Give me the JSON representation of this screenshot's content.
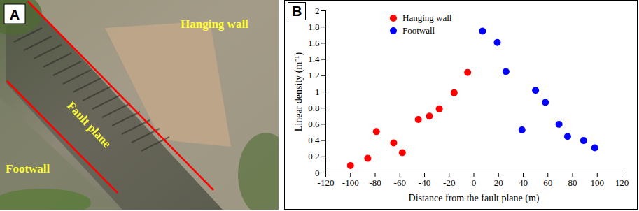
{
  "photo": {
    "panel_label": "A",
    "labels": {
      "hanging_wall": "Hanging wall",
      "fault_plane": "Fault plane",
      "footwall": "Footwall"
    }
  },
  "chart_data": {
    "type": "scatter",
    "panel_label": "B",
    "x_label": "Distance from the fault plane (m)",
    "y_label": "Linear density (m⁻¹)",
    "xlim": [
      -120,
      120
    ],
    "xticks": [
      -120,
      -100,
      -80,
      -60,
      -40,
      -20,
      0,
      20,
      40,
      60,
      80,
      100,
      120
    ],
    "ylim": [
      0,
      2
    ],
    "yticks": [
      0,
      0.2,
      0.4,
      0.6,
      0.8,
      1,
      1.2,
      1.4,
      1.6,
      1.8,
      2
    ],
    "legend": "upper left",
    "marker": "circle",
    "series": [
      {
        "name": "Hanging wall",
        "color": "#ff0000",
        "x": [
          -100,
          -86,
          -79,
          -65,
          -58,
          -45,
          -36,
          -28,
          -16,
          -5
        ],
        "values": [
          0.09,
          0.18,
          0.51,
          0.37,
          0.25,
          0.66,
          0.7,
          0.79,
          0.99,
          1.24
        ]
      },
      {
        "name": "Footwall",
        "color": "#0000ff",
        "x": [
          7,
          19,
          26,
          39,
          50,
          58,
          69,
          76,
          89,
          98
        ],
        "values": [
          1.75,
          1.61,
          1.25,
          0.53,
          1.02,
          0.87,
          0.6,
          0.45,
          0.4,
          0.31
        ]
      }
    ]
  }
}
